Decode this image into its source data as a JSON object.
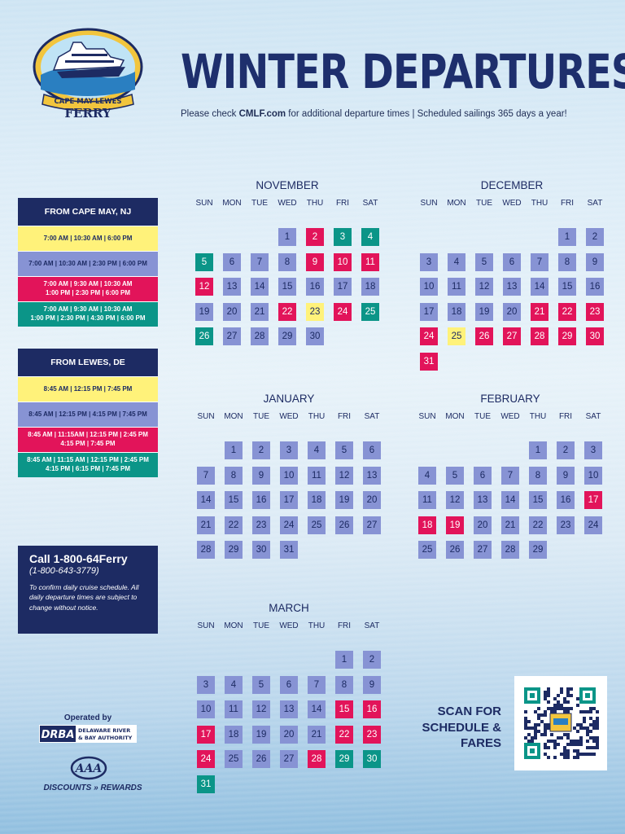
{
  "brand": {
    "arc_text": "CAPE MAY-LEWES",
    "name": "FERRY"
  },
  "title": "WINTER DEPARTURES",
  "subtitle": {
    "prefix": "Please check ",
    "site": "CMLF.com",
    "suffix": " for additional departure times | Scheduled sailings 365 days a year!"
  },
  "colors": {
    "purple": "#8793d4",
    "red": "#e2145a",
    "teal": "#0b9588",
    "yellow": "#fff27a",
    "navy": "#1d2b63"
  },
  "cape_may": {
    "heading": "FROM CAPE MAY, NJ",
    "rows": [
      {
        "color": "yellow",
        "line1": "7:00 AM | 10:30 AM | 6:00 PM",
        "line2": ""
      },
      {
        "color": "purple",
        "line1": "7:00 AM | 10:30 AM | 2:30 PM | 6:00 PM",
        "line2": ""
      },
      {
        "color": "red",
        "line1": "7:00 AM | 9:30 AM | 10:30 AM",
        "line2": "1:00 PM | 2:30 PM | 6:00 PM"
      },
      {
        "color": "teal",
        "line1": "7:00 AM | 9:30 AM | 10:30 AM",
        "line2": "1:00 PM | 2:30 PM | 4:30 PM | 6:00 PM"
      }
    ]
  },
  "lewes": {
    "heading": "FROM LEWES, DE",
    "rows": [
      {
        "color": "yellow",
        "line1": "8:45 AM | 12:15 PM | 7:45 PM",
        "line2": ""
      },
      {
        "color": "purple",
        "line1": "8:45 AM | 12:15 PM | 4:15 PM | 7:45 PM",
        "line2": ""
      },
      {
        "color": "red",
        "line1": "8:45 AM | 11:15AM | 12:15 PM | 2:45 PM",
        "line2": "4:15 PM | 7:45 PM"
      },
      {
        "color": "teal",
        "line1": "8:45 AM | 11:15 AM | 12:15 PM | 2:45 PM",
        "line2": "4:15 PM | 6:15 PM | 7:45 PM"
      }
    ]
  },
  "contact": {
    "title": "Call 1-800-64Ferry",
    "number": "(1-800-643-3779)",
    "note": "To confirm daily cruise schedule. All daily departure times are subject to change without notice."
  },
  "operated_by": "Operated by",
  "drba": {
    "mark": "DRBA",
    "line1": "DELAWARE RIVER",
    "line2": "& BAY AUTHORITY"
  },
  "aaa": {
    "mark": "AAA",
    "tagline": "DISCOUNTS » REWARDS"
  },
  "scan_text": [
    "SCAN FOR",
    "SCHEDULE &",
    "FARES"
  ],
  "weekdays": [
    "SUN",
    "MON",
    "TUE",
    "WED",
    "THU",
    "FRI",
    "SAT"
  ],
  "months": [
    {
      "name": "NOVEMBER",
      "start": 3,
      "days": 30,
      "colors": {
        "1": "p",
        "2": "r",
        "3": "t",
        "4": "t",
        "5": "t",
        "6": "p",
        "7": "p",
        "8": "p",
        "9": "r",
        "10": "r",
        "11": "r",
        "12": "r",
        "13": "p",
        "14": "p",
        "15": "p",
        "16": "p",
        "17": "p",
        "18": "p",
        "19": "p",
        "20": "p",
        "21": "p",
        "22": "r",
        "23": "y",
        "24": "r",
        "25": "t",
        "26": "t",
        "27": "p",
        "28": "p",
        "29": "p",
        "30": "p"
      }
    },
    {
      "name": "DECEMBER",
      "start": 5,
      "days": 31,
      "colors": {
        "1": "p",
        "2": "p",
        "3": "p",
        "4": "p",
        "5": "p",
        "6": "p",
        "7": "p",
        "8": "p",
        "9": "p",
        "10": "p",
        "11": "p",
        "12": "p",
        "13": "p",
        "14": "p",
        "15": "p",
        "16": "p",
        "17": "p",
        "18": "p",
        "19": "p",
        "20": "p",
        "21": "r",
        "22": "r",
        "23": "r",
        "24": "r",
        "25": "y",
        "26": "r",
        "27": "r",
        "28": "r",
        "29": "r",
        "30": "r",
        "31": "r"
      }
    },
    {
      "name": "JANUARY",
      "start": 1,
      "days": 31,
      "colors": {
        "1": "p",
        "2": "p",
        "3": "p",
        "4": "p",
        "5": "p",
        "6": "p",
        "7": "p",
        "8": "p",
        "9": "p",
        "10": "p",
        "11": "p",
        "12": "p",
        "13": "p",
        "14": "p",
        "15": "p",
        "16": "p",
        "17": "p",
        "18": "p",
        "19": "p",
        "20": "p",
        "21": "p",
        "22": "p",
        "23": "p",
        "24": "p",
        "25": "p",
        "26": "p",
        "27": "p",
        "28": "p",
        "29": "p",
        "30": "p",
        "31": "p"
      }
    },
    {
      "name": "FEBRUARY",
      "start": 4,
      "days": 29,
      "colors": {
        "1": "p",
        "2": "p",
        "3": "p",
        "4": "p",
        "5": "p",
        "6": "p",
        "7": "p",
        "8": "p",
        "9": "p",
        "10": "p",
        "11": "p",
        "12": "p",
        "13": "p",
        "14": "p",
        "15": "p",
        "16": "p",
        "17": "r",
        "18": "r",
        "19": "r",
        "20": "p",
        "21": "p",
        "22": "p",
        "23": "p",
        "24": "p",
        "25": "p",
        "26": "p",
        "27": "p",
        "28": "p",
        "29": "p"
      }
    },
    {
      "name": "MARCH",
      "start": 5,
      "days": 31,
      "colors": {
        "1": "p",
        "2": "p",
        "3": "p",
        "4": "p",
        "5": "p",
        "6": "p",
        "7": "p",
        "8": "p",
        "9": "p",
        "10": "p",
        "11": "p",
        "12": "p",
        "13": "p",
        "14": "p",
        "15": "r",
        "16": "r",
        "17": "r",
        "18": "p",
        "19": "p",
        "20": "p",
        "21": "p",
        "22": "r",
        "23": "r",
        "24": "r",
        "25": "p",
        "26": "p",
        "27": "p",
        "28": "r",
        "29": "t",
        "30": "t",
        "31": "t"
      }
    }
  ]
}
